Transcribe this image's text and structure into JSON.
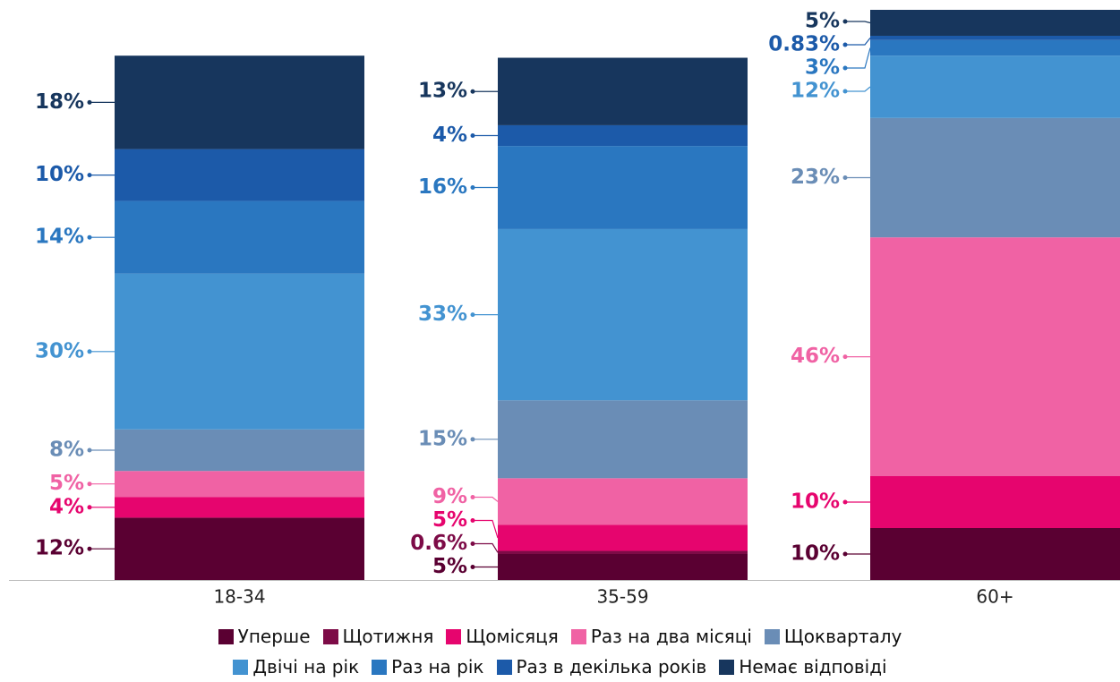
{
  "chart_data": {
    "type": "stacked_bar",
    "categories": [
      "18-34",
      "35-59",
      "60+"
    ],
    "ylim": [
      0,
      110
    ],
    "series": [
      {
        "name": "Уперше",
        "color": "#5a0032",
        "values": [
          12,
          5,
          10
        ],
        "value_labels": [
          "12%",
          "5%",
          "10%"
        ]
      },
      {
        "name": "Щотижня",
        "color": "#7d0b47",
        "values": [
          null,
          0.6,
          null
        ],
        "value_labels": [
          null,
          "0.6%",
          null
        ]
      },
      {
        "name": "Щомісяця",
        "color": "#e6056e",
        "values": [
          4,
          5,
          10
        ],
        "value_labels": [
          "4%",
          "5%",
          "10%"
        ]
      },
      {
        "name": "Раз на два місяці",
        "color": "#f062a4",
        "values": [
          5,
          9,
          46
        ],
        "value_labels": [
          "5%",
          "9%",
          "46%"
        ]
      },
      {
        "name": "Щокварталу",
        "color": "#6a8db6",
        "values": [
          8,
          15,
          23
        ],
        "value_labels": [
          "8%",
          "15%",
          "23%"
        ]
      },
      {
        "name": "Двічі на рік",
        "color": "#4393d1",
        "values": [
          30,
          33,
          12
        ],
        "value_labels": [
          "30%",
          "33%",
          "12%"
        ]
      },
      {
        "name": "Раз на рік",
        "color": "#2a77c0",
        "values": [
          14,
          16,
          3
        ],
        "value_labels": [
          "14%",
          "16%",
          "3%"
        ]
      },
      {
        "name": "Раз в декілька років",
        "color": "#1c5aa9",
        "values": [
          10,
          4,
          0.83
        ],
        "value_labels": [
          "10%",
          "4%",
          "0.83%"
        ]
      },
      {
        "name": "Немає відповіді",
        "color": "#17365d",
        "values": [
          18,
          13,
          5
        ],
        "value_labels": [
          "18%",
          "13%",
          "5%"
        ]
      }
    ]
  }
}
